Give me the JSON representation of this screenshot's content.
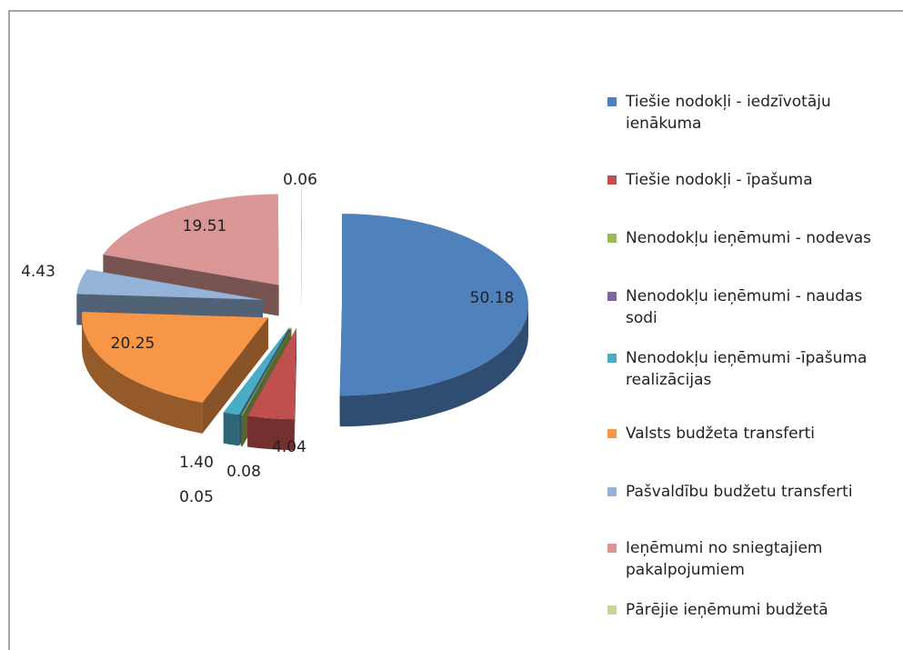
{
  "chart_data": {
    "type": "pie",
    "categories": [
      "Tiešie nodokļi - iedzīvotāju ienākuma",
      "Tiešie nodokļi - īpašuma",
      "Nenodokļu ieņēmumi - nodevas",
      "Nenodokļu ieņēmumi - naudas sodi",
      "Nenodokļu ieņēmumi -īpašuma realizācijas",
      "Valsts budžeta transferti",
      "Pašvaldību budžetu transferti",
      "Ieņēmumi no sniegtajiem pakalpojumiem",
      "Pārējie ieņēmumi budžetā"
    ],
    "values": [
      50.18,
      4.04,
      0.08,
      0.05,
      1.4,
      20.25,
      4.43,
      19.51,
      0.06
    ],
    "value_labels": [
      "50.18",
      "4.04",
      "0.08",
      "0.05",
      "1.40",
      "20.25",
      "4.43",
      "19.51",
      "0.06"
    ],
    "colors": [
      "#4f81bd",
      "#c0504d",
      "#9bbb59",
      "#8064a2",
      "#4bacc6",
      "#f79646",
      "#95b3d7",
      "#d99694",
      "#c3d69b"
    ],
    "legend": "right"
  }
}
